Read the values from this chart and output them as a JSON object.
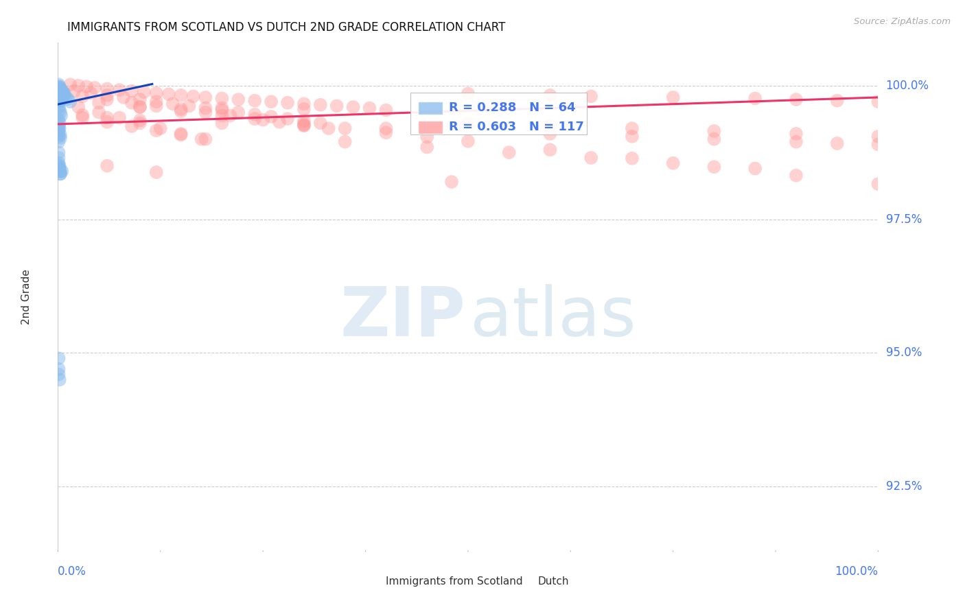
{
  "title": "IMMIGRANTS FROM SCOTLAND VS DUTCH 2ND GRADE CORRELATION CHART",
  "source": "Source: ZipAtlas.com",
  "ylabel": "2nd Grade",
  "yticks_labels": [
    "100.0%",
    "97.5%",
    "95.0%",
    "92.5%"
  ],
  "yticks_values": [
    1.0,
    0.975,
    0.95,
    0.925
  ],
  "xtick_left": "0.0%",
  "xtick_right": "100.0%",
  "xmin": 0.0,
  "xmax": 1.0,
  "ymin": 0.913,
  "ymax": 1.008,
  "legend_label1": "Immigrants from Scotland",
  "legend_label2": "Dutch",
  "r1_text": "R = 0.288",
  "n1_text": "N = 64",
  "r2_text": "R = 0.603",
  "n2_text": "N = 117",
  "color_blue_fill": "#88BBEE",
  "color_pink_fill": "#FF9999",
  "color_line_blue": "#1144BB",
  "color_line_pink": "#EE3366",
  "color_tick": "#4477EE",
  "color_grid": "#CCCCCC",
  "color_title": "#111111",
  "color_source": "#AAAAAA",
  "blue_x": [
    0.001,
    0.001,
    0.001,
    0.001,
    0.001,
    0.001,
    0.001,
    0.001,
    0.002,
    0.002,
    0.002,
    0.002,
    0.002,
    0.002,
    0.003,
    0.003,
    0.003,
    0.003,
    0.003,
    0.004,
    0.004,
    0.004,
    0.005,
    0.005,
    0.005,
    0.006,
    0.006,
    0.007,
    0.007,
    0.008,
    0.01,
    0.012,
    0.015,
    0.001,
    0.002,
    0.003,
    0.004,
    0.001,
    0.002,
    0.001,
    0.002,
    0.001,
    0.001,
    0.001,
    0.001,
    0.001,
    0.002,
    0.002,
    0.003,
    0.003,
    0.001,
    0.001,
    0.001,
    0.003,
    0.003,
    0.002,
    0.003,
    0.001,
    0.001,
    0.005,
    0.001,
    0.001,
    0.001,
    0.002
  ],
  "blue_y": [
    1.0002,
    0.9998,
    0.9994,
    0.999,
    0.9985,
    0.998,
    0.9975,
    0.997,
    0.9998,
    0.9993,
    0.9988,
    0.9982,
    0.9976,
    0.997,
    0.9995,
    0.999,
    0.9984,
    0.9978,
    0.9972,
    0.9992,
    0.9986,
    0.998,
    0.999,
    0.9984,
    0.9978,
    0.9988,
    0.9982,
    0.9986,
    0.998,
    0.9984,
    0.9978,
    0.9975,
    0.997,
    0.996,
    0.9955,
    0.995,
    0.9944,
    0.9936,
    0.993,
    0.9925,
    0.992,
    0.9905,
    0.9895,
    0.9875,
    0.9865,
    0.9855,
    0.985,
    0.9845,
    0.984,
    0.9835,
    0.992,
    0.9915,
    0.991,
    0.9908,
    0.9902,
    0.984,
    0.9835,
    0.985,
    0.9845,
    0.984,
    0.949,
    0.947,
    0.946,
    0.945
  ],
  "pink_x": [
    0.015,
    0.025,
    0.035,
    0.045,
    0.06,
    0.075,
    0.09,
    0.105,
    0.12,
    0.135,
    0.15,
    0.165,
    0.18,
    0.2,
    0.22,
    0.24,
    0.26,
    0.28,
    0.3,
    0.32,
    0.34,
    0.36,
    0.38,
    0.02,
    0.04,
    0.06,
    0.08,
    0.1,
    0.12,
    0.14,
    0.16,
    0.18,
    0.2,
    0.22,
    0.24,
    0.26,
    0.28,
    0.3,
    0.32,
    0.03,
    0.06,
    0.09,
    0.12,
    0.15,
    0.18,
    0.21,
    0.24,
    0.27,
    0.3,
    0.33,
    0.05,
    0.1,
    0.15,
    0.2,
    0.25,
    0.3,
    0.35,
    0.4,
    0.45,
    0.5,
    0.6,
    0.7,
    0.8,
    0.9,
    1.0,
    0.025,
    0.05,
    0.075,
    0.1,
    0.125,
    0.15,
    0.175,
    0.35,
    0.45,
    0.55,
    0.65,
    0.75,
    0.85,
    0.5,
    0.6,
    0.7,
    0.8,
    0.9,
    1.0,
    0.03,
    0.06,
    0.09,
    0.12,
    0.15,
    0.18,
    0.06,
    0.12,
    0.48,
    0.03,
    0.06,
    0.1,
    0.2,
    0.3,
    0.4,
    0.6,
    0.7,
    0.8,
    0.9,
    0.95,
    1.0,
    0.5,
    0.6,
    0.65,
    0.75,
    0.85,
    0.9,
    0.95,
    1.0,
    0.1,
    0.2,
    0.3,
    0.4
  ],
  "pink_y": [
    1.0002,
    1.0,
    0.9998,
    0.9996,
    0.9994,
    0.9992,
    0.999,
    0.9988,
    0.9986,
    0.9984,
    0.9982,
    0.998,
    0.9978,
    0.9976,
    0.9974,
    0.9972,
    0.997,
    0.9968,
    0.9966,
    0.9964,
    0.9962,
    0.996,
    0.9958,
    0.999,
    0.9986,
    0.9982,
    0.9978,
    0.9974,
    0.997,
    0.9966,
    0.9962,
    0.9958,
    0.9954,
    0.995,
    0.9946,
    0.9942,
    0.9938,
    0.9934,
    0.993,
    0.998,
    0.9974,
    0.9968,
    0.9962,
    0.9956,
    0.995,
    0.9944,
    0.9938,
    0.9932,
    0.9926,
    0.992,
    0.9968,
    0.996,
    0.9952,
    0.9944,
    0.9936,
    0.9928,
    0.992,
    0.9912,
    0.9904,
    0.9896,
    0.988,
    0.9864,
    0.9848,
    0.9832,
    0.9816,
    0.996,
    0.995,
    0.994,
    0.993,
    0.992,
    0.991,
    0.99,
    0.9895,
    0.9885,
    0.9875,
    0.9865,
    0.9855,
    0.9845,
    0.993,
    0.9925,
    0.992,
    0.9915,
    0.991,
    0.9905,
    0.994,
    0.9932,
    0.9924,
    0.9916,
    0.9908,
    0.99,
    0.985,
    0.9838,
    0.982,
    0.9945,
    0.994,
    0.9935,
    0.993,
    0.9925,
    0.992,
    0.991,
    0.9905,
    0.99,
    0.9895,
    0.9892,
    0.989,
    0.9985,
    0.9982,
    0.998,
    0.9978,
    0.9976,
    0.9974,
    0.9972,
    0.997,
    0.996,
    0.9958,
    0.9956,
    0.9954
  ],
  "blue_trend_x": [
    0.0,
    0.115
  ],
  "blue_trend_y": [
    0.9965,
    1.0003
  ],
  "pink_trend_x": [
    0.0,
    1.0
  ],
  "pink_trend_y": [
    0.9928,
    0.9978
  ]
}
